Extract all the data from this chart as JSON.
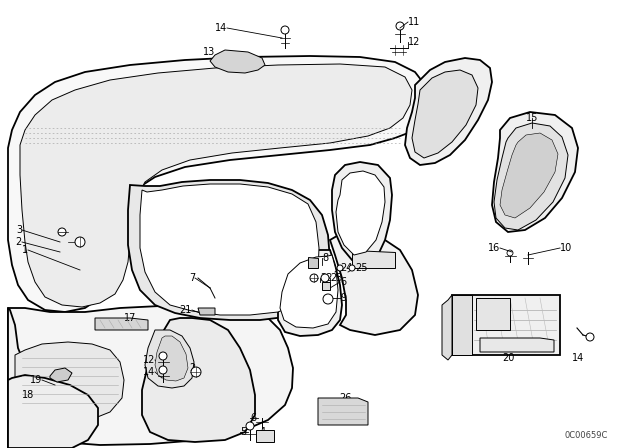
{
  "background_color": "#ffffff",
  "line_color": "#000000",
  "doc_code": "0C00659C",
  "fig_width": 6.4,
  "fig_height": 4.48,
  "dpi": 100,
  "lw_main": 1.3,
  "lw_thin": 0.7,
  "lw_hair": 0.4,
  "fontsize": 7
}
